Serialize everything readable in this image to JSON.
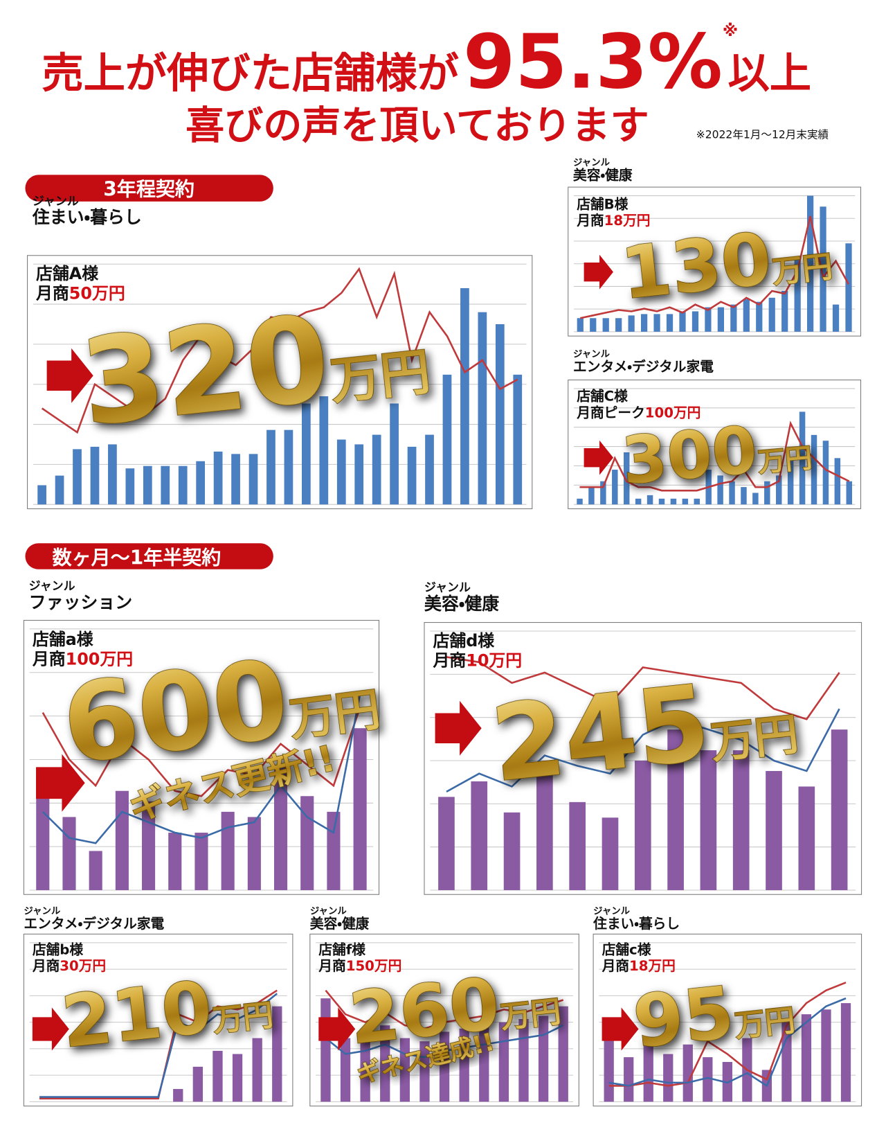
{
  "header": {
    "line1_prefix": "売上が伸びた店舗様が",
    "highlight": "95.3%",
    "mark": "※",
    "line1_suffix": "以上",
    "line2": "喜びの声を頂いております",
    "note": "※2022年1月～12月末実績"
  },
  "sections": [
    {
      "label": "3年程契約"
    },
    {
      "label": "数ヶ月～1年半契約"
    }
  ],
  "panels": [
    {
      "genre_label": "ジャンル",
      "genre": "住まい・暮らし",
      "store": "店舗A様",
      "before_label": "月商",
      "before": "50万円",
      "after": "320",
      "unit": "万円",
      "bars": [
        8,
        12,
        23,
        24,
        25,
        15,
        16,
        16,
        16,
        18,
        22,
        21,
        21,
        31,
        31,
        42,
        45,
        27,
        25,
        29,
        42,
        24,
        29,
        54,
        90,
        80,
        75,
        54
      ],
      "line": [
        40,
        35,
        30,
        50,
        45,
        40,
        38,
        44,
        60,
        70,
        62,
        58,
        65,
        78,
        76,
        80,
        82,
        88,
        98,
        78,
        96,
        60,
        80,
        70,
        55,
        60,
        48,
        52
      ]
    },
    {
      "genre_label": "ジャンル",
      "genre": "美容・健康",
      "store": "店舗B様",
      "before_label": "月商",
      "before": "18万円",
      "after": "130",
      "unit": "万円",
      "bars": [
        10,
        10,
        10,
        10,
        12,
        13,
        13,
        13,
        15,
        15,
        18,
        18,
        20,
        24,
        22,
        25,
        30,
        55,
        100,
        92,
        20,
        65
      ],
      "line": [
        10,
        12,
        14,
        16,
        15,
        17,
        15,
        18,
        14,
        20,
        16,
        22,
        18,
        25,
        20,
        30,
        28,
        45,
        85,
        40,
        52,
        35
      ]
    },
    {
      "genre_label": "ジャンル",
      "genre": "エンタメ・デジタル家電",
      "store": "店舗C様",
      "before_label": "月商ピーク",
      "before": "100万円",
      "after": "300",
      "unit": "万円",
      "bars": [
        5,
        15,
        20,
        30,
        45,
        5,
        8,
        5,
        5,
        5,
        5,
        30,
        25,
        20,
        15,
        10,
        20,
        25,
        40,
        80,
        60,
        55,
        40,
        20
      ],
      "line": [
        15,
        15,
        15,
        40,
        20,
        15,
        15,
        12,
        12,
        12,
        12,
        15,
        18,
        20,
        30,
        15,
        15,
        20,
        70,
        50,
        40,
        30,
        25,
        20
      ]
    },
    {
      "genre_label": "ジャンル",
      "genre": "ファッション",
      "store": "店舗a様",
      "before_label": "月商",
      "before": "100万円",
      "after": "600",
      "unit": "万円",
      "badge": "ギネス更新!!",
      "bars": [
        45,
        28,
        15,
        38,
        34,
        22,
        22,
        30,
        28,
        48,
        36,
        30,
        62
      ],
      "line": [
        68,
        50,
        40,
        58,
        50,
        38,
        36,
        46,
        44,
        56,
        48,
        40,
        70
      ],
      "line2": [
        30,
        20,
        18,
        30,
        26,
        22,
        20,
        24,
        26,
        40,
        28,
        22,
        75
      ]
    },
    {
      "genre_label": "ジャンル",
      "genre": "美容・健康",
      "store": "店舗d様",
      "before_label": "月商",
      "before": "10万円",
      "after": "245",
      "unit": "万円",
      "bars": [
        36,
        42,
        30,
        45,
        34,
        28,
        50,
        62,
        54,
        54,
        46,
        40,
        62
      ],
      "line": [
        90,
        88,
        80,
        84,
        78,
        72,
        86,
        84,
        82,
        80,
        70,
        66,
        84
      ],
      "line2": [
        38,
        45,
        40,
        52,
        48,
        45,
        60,
        66,
        62,
        58,
        50,
        46,
        70
      ]
    },
    {
      "genre_label": "ジャンル",
      "genre": "エンタメ・デジタル家電",
      "store": "店舗b様",
      "before_label": "月商",
      "before": "30万円",
      "after": "210",
      "unit": "万円",
      "bars": [
        0,
        0,
        0,
        0,
        0,
        0,
        0,
        8,
        22,
        32,
        30,
        40,
        60
      ],
      "line": [
        2,
        2,
        2,
        2,
        2,
        2,
        2,
        55,
        50,
        60,
        58,
        62,
        70
      ],
      "line2": [
        3,
        3,
        3,
        3,
        3,
        3,
        3,
        50,
        45,
        55,
        52,
        58,
        68
      ]
    },
    {
      "genre_label": "ジャンル",
      "genre": "美容・健康",
      "store": "店舗f様",
      "before_label": "月商",
      "before": "150万円",
      "after": "260",
      "unit": "万円",
      "badge": "ギネス達成!!",
      "bars": [
        65,
        40,
        42,
        48,
        40,
        38,
        44,
        46,
        48,
        50,
        52,
        54,
        60
      ],
      "line": [
        70,
        55,
        50,
        56,
        48,
        46,
        50,
        52,
        54,
        58,
        56,
        60,
        64
      ],
      "line2": [
        40,
        30,
        32,
        36,
        30,
        28,
        32,
        34,
        36,
        38,
        40,
        42,
        48
      ]
    },
    {
      "genre_label": "ジャンル",
      "genre": "住まい・暮らし",
      "store": "店舗c様",
      "before_label": "月商",
      "before": "18万円",
      "after": "95",
      "unit": "万円",
      "bars": [
        48,
        28,
        40,
        30,
        36,
        28,
        25,
        40,
        20,
        50,
        55,
        58,
        62
      ],
      "line": [
        10,
        10,
        12,
        10,
        12,
        38,
        30,
        20,
        14,
        48,
        62,
        70,
        75
      ],
      "line2": [
        12,
        10,
        14,
        12,
        12,
        15,
        12,
        18,
        10,
        40,
        50,
        60,
        65
      ]
    }
  ]
}
